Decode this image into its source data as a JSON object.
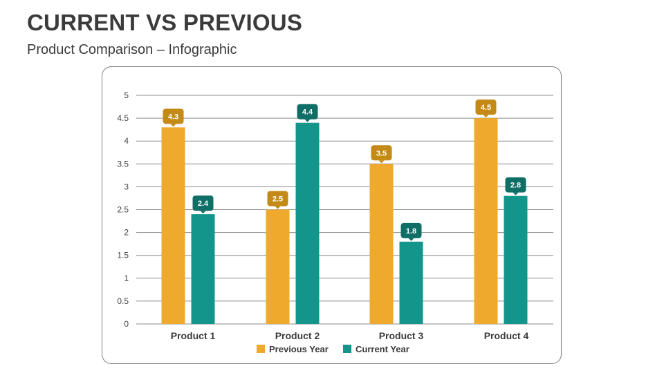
{
  "header": {
    "title": "CURRENT VS PREVIOUS",
    "subtitle": "Product Comparison – Infographic"
  },
  "colors": {
    "previous_bar": "#EFA92D",
    "current_bar": "#14958B",
    "previous_label": "#C48A17",
    "current_label": "#0F6E66",
    "gridline": "#8c8c8c"
  },
  "chart_data": {
    "type": "bar",
    "title": "",
    "xlabel": "",
    "ylabel": "",
    "ylim": [
      0,
      5
    ],
    "ytick_step": 0.5,
    "yticks": [
      "0",
      "0.5",
      "1",
      "1.5",
      "2",
      "2.5",
      "3",
      "3.5",
      "4",
      "4.5",
      "5"
    ],
    "grid": true,
    "legend_position": "bottom",
    "categories": [
      "Product 1",
      "Product 2",
      "Product 3",
      "Product  4"
    ],
    "series": [
      {
        "name": "Previous Year",
        "values": [
          4.3,
          2.5,
          3.5,
          4.5
        ],
        "labels": [
          "4.3",
          "2.5",
          "3.5",
          "4.5"
        ]
      },
      {
        "name": "Current Year",
        "values": [
          2.4,
          4.4,
          1.8,
          2.8
        ],
        "labels": [
          "2.4",
          "4.4",
          "1.8",
          "2.8"
        ]
      }
    ]
  }
}
